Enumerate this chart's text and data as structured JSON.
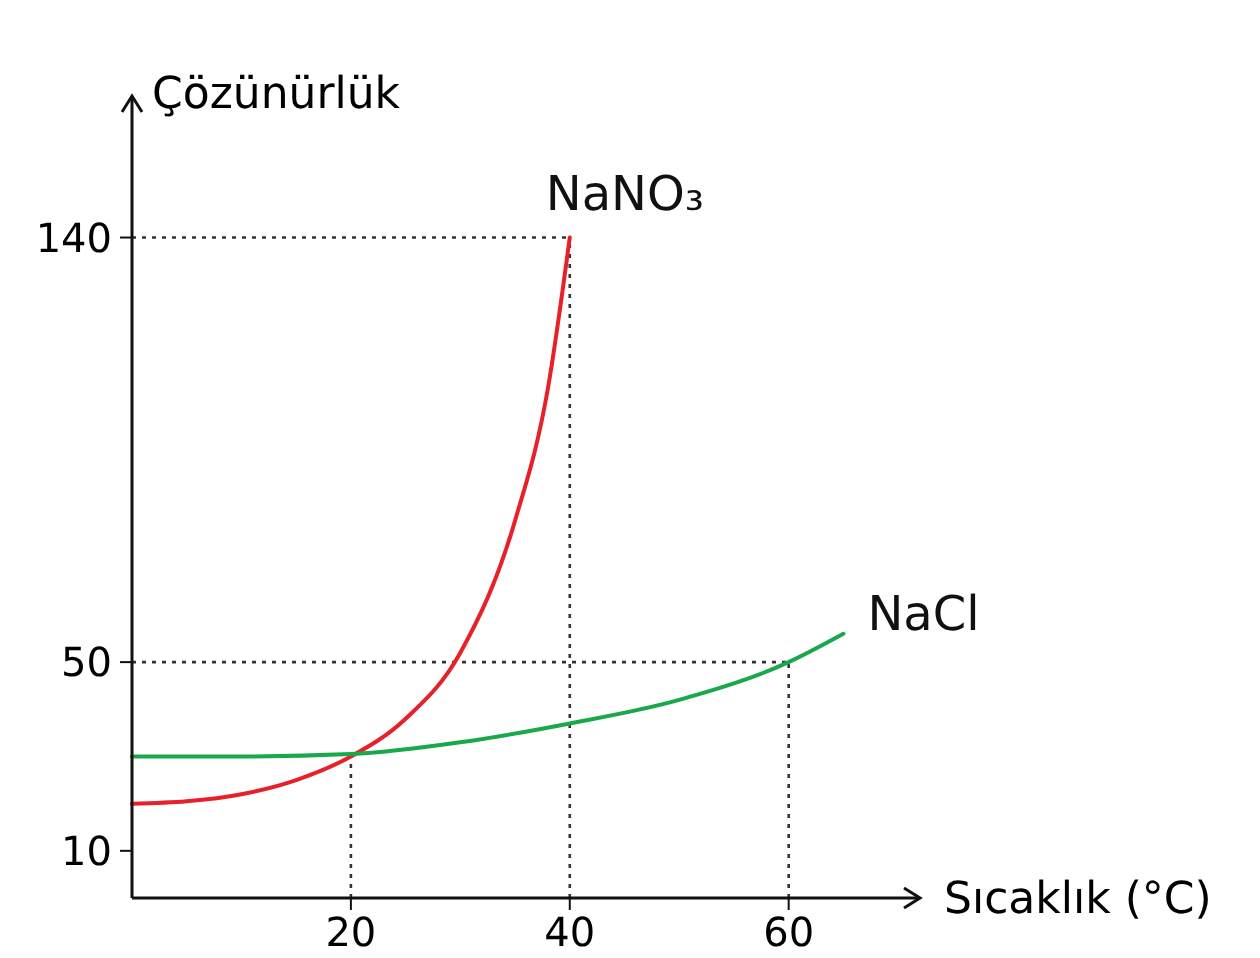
{
  "chart_data": {
    "type": "line",
    "xlabel": "Sıcaklık (°C)",
    "ylabel": "Çözünürlük",
    "xlim": [
      0,
      72
    ],
    "ylim": [
      0,
      170
    ],
    "xticks": [
      20,
      40,
      60
    ],
    "yticks": [
      10,
      50,
      140
    ],
    "grid": false,
    "marker": "none",
    "line_style": "solid",
    "series": [
      {
        "name": "NaNO₃",
        "color": "#e8202a",
        "x": [
          0,
          5,
          10,
          15,
          20,
          25,
          30,
          35,
          38,
          40
        ],
        "values": [
          20,
          20.5,
          22,
          25,
          30,
          38,
          52,
          80,
          108,
          140
        ]
      },
      {
        "name": "NaCl",
        "color": "#1aa84a",
        "x": [
          0,
          10,
          20,
          30,
          40,
          50,
          60,
          65
        ],
        "values": [
          30,
          30,
          30.5,
          33,
          37,
          42,
          50,
          56
        ]
      }
    ],
    "ref_lines": [
      {
        "axis": "y",
        "value": 140,
        "line_style": "dotted"
      },
      {
        "axis": "y",
        "value": 50,
        "line_style": "dotted"
      },
      {
        "axis": "x",
        "value": 20,
        "line_style": "dotted"
      },
      {
        "axis": "x",
        "value": 40,
        "line_style": "dotted"
      },
      {
        "axis": "x",
        "value": 60,
        "line_style": "dotted"
      }
    ]
  }
}
